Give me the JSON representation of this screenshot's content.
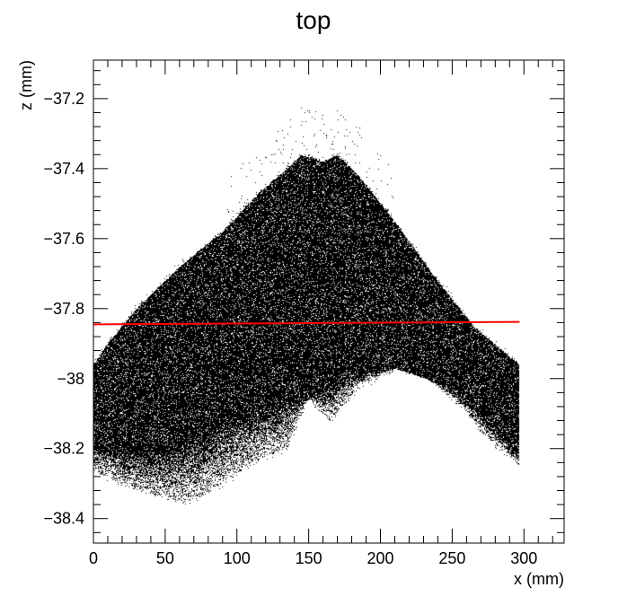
{
  "chart_data": {
    "type": "scatter",
    "title": "top",
    "xlabel": "x (mm)",
    "ylabel": "z (mm)",
    "xlim": [
      0,
      328
    ],
    "ylim": [
      -38.47,
      -37.09
    ],
    "x_major_ticks": [
      0,
      50,
      100,
      150,
      200,
      250,
      300
    ],
    "x_tick_labels": [
      "0",
      "50",
      "100",
      "150",
      "200",
      "250",
      "300"
    ],
    "y_major_ticks": [
      -38.4,
      -38.2,
      -38.0,
      -37.8,
      -37.6,
      -37.4,
      -37.2
    ],
    "y_tick_labels": [
      "−38.4",
      "−38.2",
      "−38",
      "−37.8",
      "−37.6",
      "−37.4",
      "−37.2"
    ],
    "grid": false,
    "series": [
      {
        "name": "point cloud",
        "color": "#000000",
        "description_envelope_upper": {
          "x": [
            0,
            10,
            30,
            60,
            90,
            115,
            135,
            145,
            160,
            170,
            185,
            210,
            240,
            265,
            285,
            297
          ],
          "z": [
            -37.96,
            -37.9,
            -37.8,
            -37.68,
            -37.58,
            -37.47,
            -37.4,
            -37.36,
            -37.38,
            -37.36,
            -37.42,
            -37.55,
            -37.72,
            -37.85,
            -37.92,
            -37.96
          ]
        },
        "description_envelope_lower": {
          "x": [
            0,
            20,
            45,
            65,
            85,
            110,
            135,
            150,
            165,
            185,
            210,
            230,
            255,
            275,
            290,
            297
          ],
          "z": [
            -38.26,
            -38.3,
            -38.33,
            -38.35,
            -38.31,
            -38.24,
            -38.2,
            -38.05,
            -38.12,
            -38.02,
            -37.97,
            -37.99,
            -38.07,
            -38.17,
            -38.22,
            -38.25
          ]
        },
        "dense_band_lower": {
          "x": [
            0,
            40,
            80,
            120,
            150,
            180,
            210,
            240,
            270,
            297
          ],
          "z": [
            -38.2,
            -38.22,
            -38.16,
            -38.08,
            -38.06,
            -37.99,
            -37.97,
            -38.01,
            -38.1,
            -38.22
          ]
        }
      },
      {
        "name": "fit line",
        "color": "#ff0000",
        "x": [
          0,
          297
        ],
        "z": [
          -37.845,
          -37.838
        ]
      }
    ]
  }
}
